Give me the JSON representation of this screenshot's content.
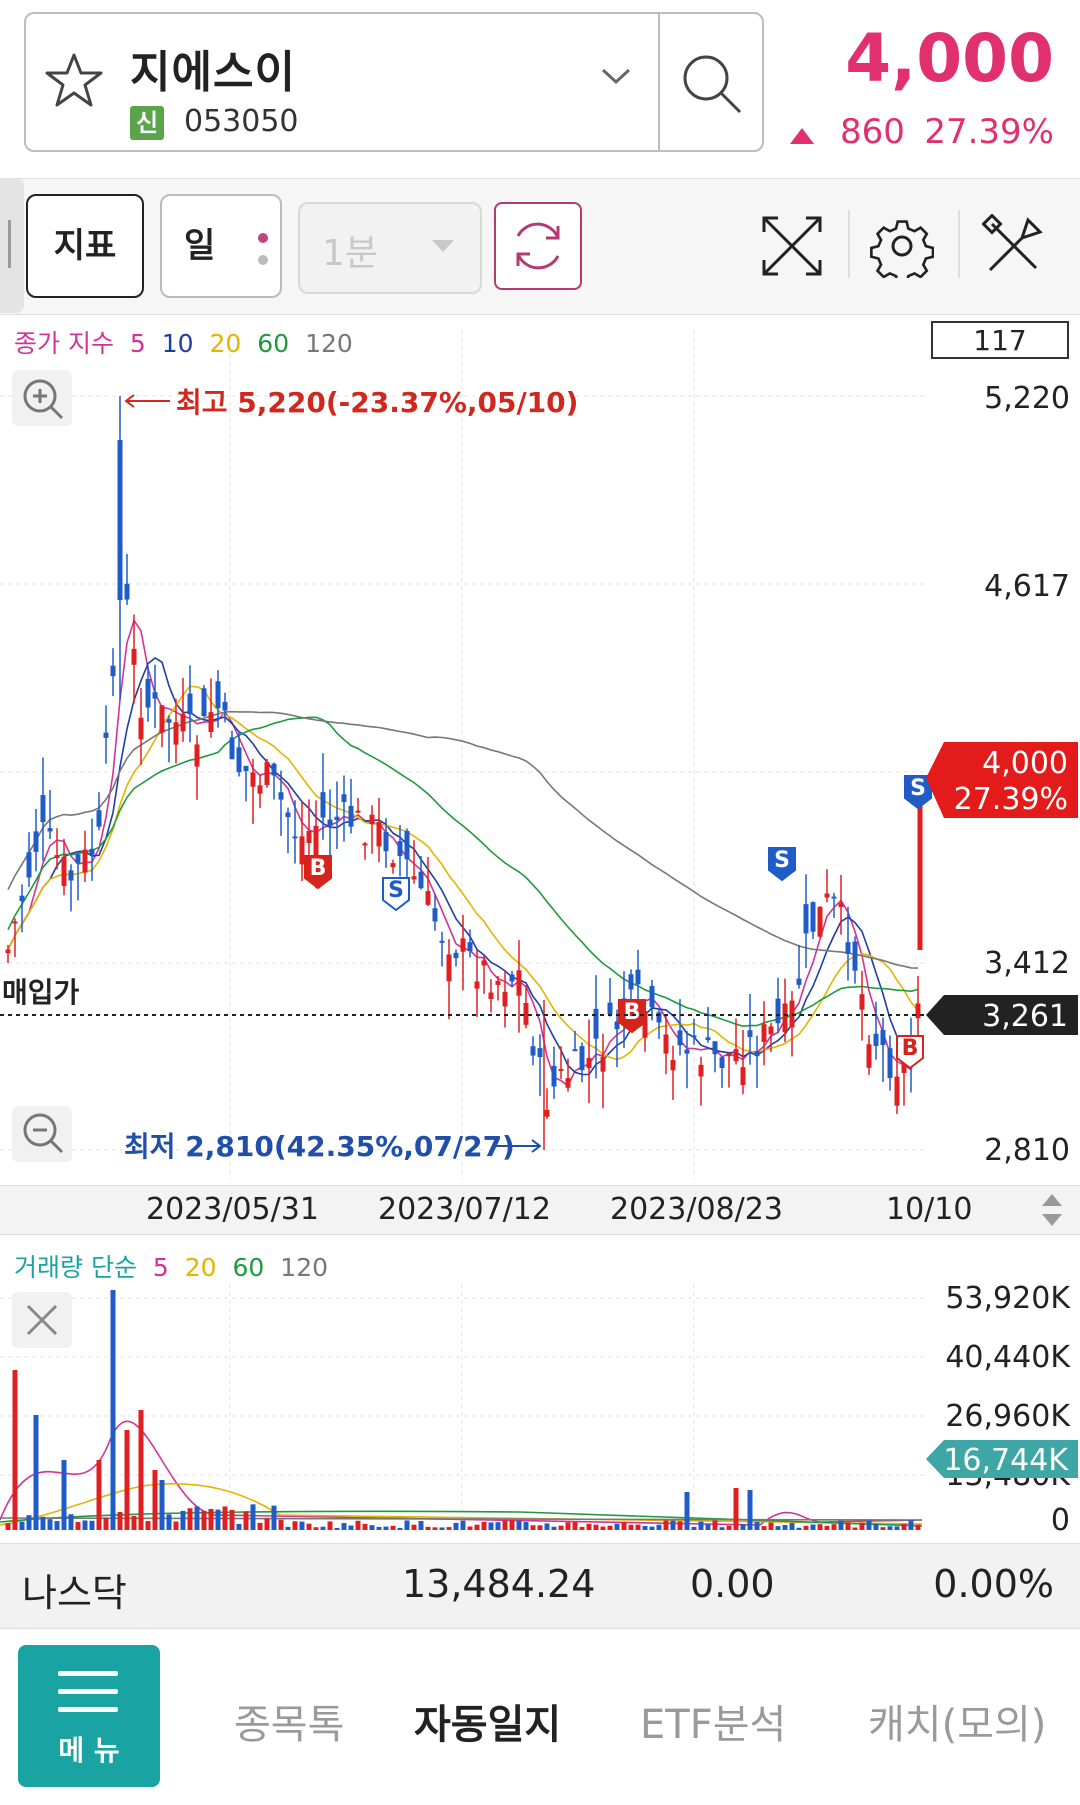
{
  "header": {
    "stock_name": "지에스이",
    "credit_badge": "신",
    "stock_code": "053050",
    "price": "4,000",
    "change_amount": "860",
    "change_rate": "27.39%"
  },
  "toolbar": {
    "indicator_label": "지표",
    "period_label": "일",
    "interval_label": "1분"
  },
  "price_chart": {
    "legend_prefix": "종가 지수",
    "legend_periods": [
      "5",
      "10",
      "20",
      "60",
      "120"
    ],
    "legend_colors": [
      "#d1339a",
      "#1d3ea8",
      "#e5b400",
      "#1e9b3d",
      "#777777"
    ],
    "count_box": "117",
    "y_labels": [
      "5,220",
      "4,617",
      "3,412",
      "2,810"
    ],
    "high_annotation": "최고 5,220(-23.37%,05/10)",
    "low_annotation": "최저 2,810(42.35%,07/27)",
    "purchase_label": "매입가",
    "purchase_price": "3,261",
    "current_price_tag": "4,000",
    "current_rate_tag": "27.39%",
    "signals": [
      "B",
      "S",
      "B",
      "S",
      "S",
      "B"
    ]
  },
  "dates": [
    "2023/05/31",
    "2023/07/12",
    "2023/08/23",
    "10/10"
  ],
  "volume_chart": {
    "legend_prefix": "거래량 단순",
    "legend_periods": [
      "5",
      "20",
      "60",
      "120"
    ],
    "legend_colors": [
      "#d1339a",
      "#e5b400",
      "#1e9b3d",
      "#777777"
    ],
    "y_labels": [
      "53,920K",
      "40,440K",
      "26,960K",
      "13,480K",
      "0"
    ],
    "current_volume_tag": "16,744K"
  },
  "index_bar": {
    "name": "나스닥",
    "value": "13,484.24",
    "change": "0.00",
    "rate": "0.00%"
  },
  "bottom_nav": {
    "menu_label": "메 뉴",
    "tabs": [
      "종목톡",
      "자동일지",
      "ETF분석",
      "캐치(모의)"
    ]
  },
  "colors": {
    "up": "#e0306e",
    "candle_up": "#e02020",
    "candle_down": "#1f5cc8",
    "accent_teal": "#1aa3a3"
  }
}
